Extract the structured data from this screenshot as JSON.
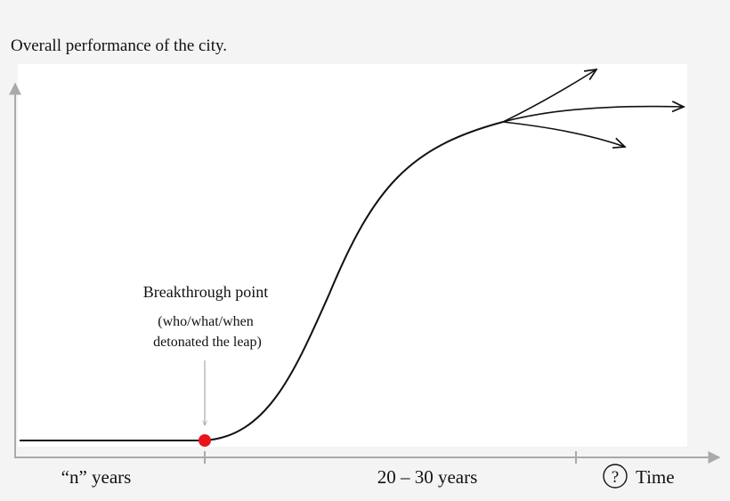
{
  "header": {
    "title": "Overall performance of the city."
  },
  "annotation": {
    "title": "Breakthrough point",
    "lines": [
      "(who/what/when",
      "detonated the leap)"
    ]
  },
  "x_axis": {
    "segments": [
      "“n” years",
      "20 – 30 years"
    ],
    "unknown": "?",
    "label": "Time"
  }
}
